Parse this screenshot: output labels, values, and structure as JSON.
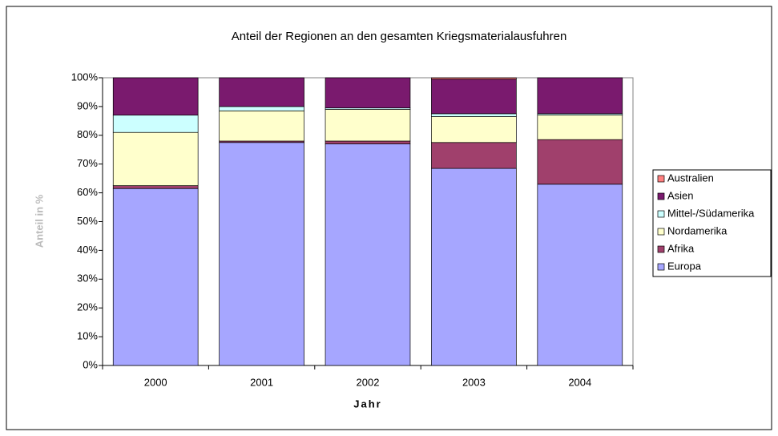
{
  "chart_data": {
    "type": "stacked_bar",
    "title": "Anteil der Regionen an den gesamten Kriegsmaterialausfuhren",
    "xlabel": "Jahr",
    "ylabel": "Anteil in %",
    "categories": [
      "2000",
      "2001",
      "2002",
      "2003",
      "2004"
    ],
    "series": [
      {
        "name": "Europa",
        "color": "#a6a6ff",
        "values": [
          61.5,
          77.5,
          77,
          68.5,
          63
        ]
      },
      {
        "name": "Afrika",
        "color": "#a0406c",
        "values": [
          1,
          0.5,
          1,
          9,
          15.5
        ]
      },
      {
        "name": "Nordamerika",
        "color": "#ffffcc",
        "values": [
          18.5,
          10.5,
          11,
          9,
          8.5
        ]
      },
      {
        "name": "Mittel-/Südamerika",
        "color": "#ccffff",
        "values": [
          6,
          1.5,
          0.5,
          1,
          0.5
        ]
      },
      {
        "name": "Asien",
        "color": "#7a1a6e",
        "values": [
          13,
          10,
          10.5,
          12,
          12.5
        ]
      },
      {
        "name": "Australien",
        "color": "#ff8080",
        "values": [
          0,
          0,
          0,
          0.5,
          0
        ]
      }
    ],
    "ylim": [
      0,
      100
    ],
    "yticks": [
      {
        "value": 0,
        "label": "0%"
      },
      {
        "value": 10,
        "label": "10%"
      },
      {
        "value": 20,
        "label": "20%"
      },
      {
        "value": 30,
        "label": "30%"
      },
      {
        "value": 40,
        "label": "40%"
      },
      {
        "value": 50,
        "label": "50%"
      },
      {
        "value": 60,
        "label": "60%"
      },
      {
        "value": 70,
        "label": "70%"
      },
      {
        "value": 80,
        "label": "80%"
      },
      {
        "value": 90,
        "label": "90%"
      },
      {
        "value": 100,
        "label": "100%"
      }
    ],
    "grid": false,
    "legend": "right"
  }
}
